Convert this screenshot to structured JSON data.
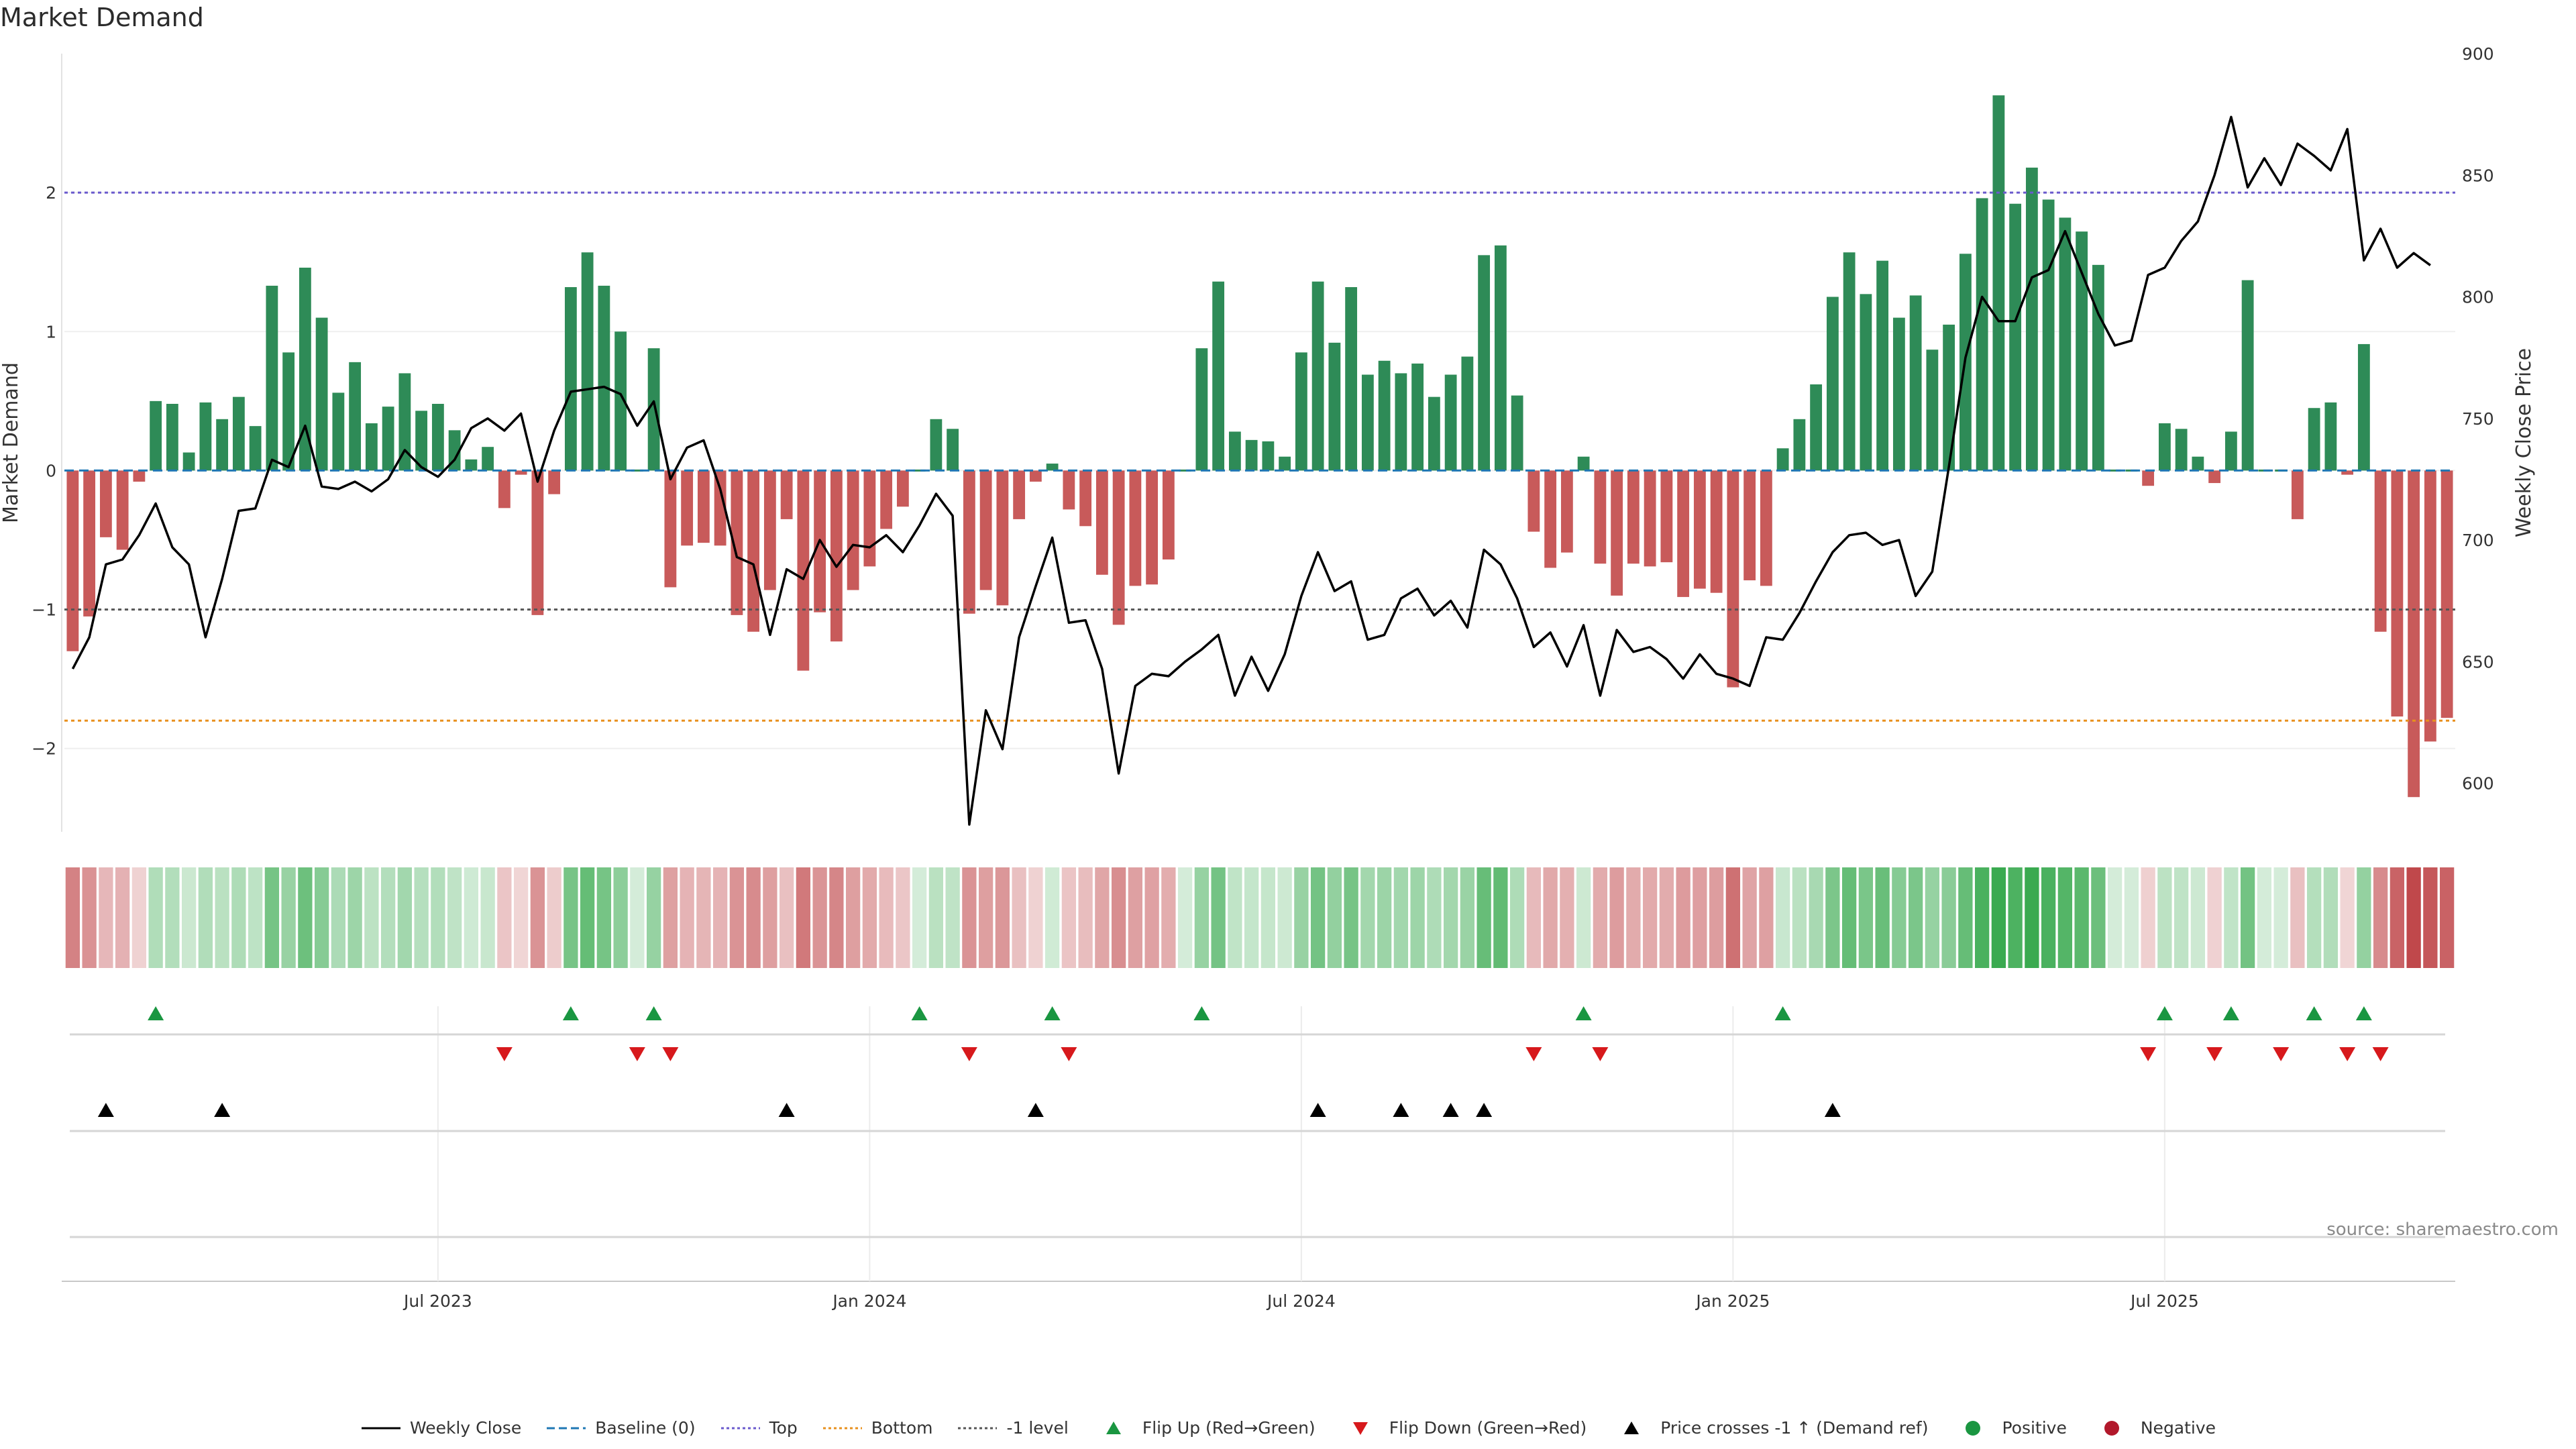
{
  "chart_data": {
    "type": "bar",
    "title": "Market Demand",
    "ylabel": "Market Demand",
    "y2label": "Weekly Close Price",
    "ylim": [
      -2.6,
      3.0
    ],
    "y2lim": [
      580,
      900
    ],
    "yticks": [
      -2,
      -1,
      0,
      1,
      2
    ],
    "yticklabels": [
      "−2",
      "−1",
      "0",
      "1",
      "2"
    ],
    "y2ticks": [
      600,
      650,
      700,
      750,
      800,
      850,
      900
    ],
    "y2ticklabels": [
      "600",
      "650",
      "700",
      "750",
      "800",
      "850",
      "900"
    ],
    "xticks": [
      22,
      48,
      74,
      100,
      126
    ],
    "xticklabels": [
      "Jul 2023",
      "Jan 2024",
      "Jul 2024",
      "Jan 2025",
      "Jul 2025"
    ],
    "reference_lines": [
      {
        "name": "Top",
        "value": 2.0,
        "color": "#6a5acd",
        "style": "dotted"
      },
      {
        "name": "-1 level",
        "value": -1.0,
        "color": "#555555",
        "style": "dotted"
      },
      {
        "name": "Bottom",
        "value": -1.8,
        "color": "#e8901e",
        "style": "dotted"
      },
      {
        "name": "Baseline (0)",
        "value": 0.0,
        "color": "#1f77b4",
        "style": "dashed"
      }
    ],
    "demand": [
      -1.3,
      -1.05,
      -0.48,
      -0.57,
      -0.08,
      0.5,
      0.48,
      0.13,
      0.49,
      0.37,
      0.53,
      0.32,
      1.33,
      0.85,
      1.46,
      1.1,
      0.56,
      0.78,
      0.34,
      0.46,
      0.7,
      0.43,
      0.48,
      0.29,
      0.08,
      0.17,
      -0.27,
      -0.03,
      -1.04,
      -0.17,
      1.32,
      1.57,
      1.33,
      1.0,
      0.0,
      0.88,
      -0.84,
      -0.54,
      -0.52,
      -0.54,
      -1.04,
      -1.16,
      -0.86,
      -0.35,
      -1.44,
      -1.02,
      -1.23,
      -0.86,
      -0.69,
      -0.42,
      -0.26,
      0.0,
      0.37,
      0.3,
      -1.03,
      -0.86,
      -0.97,
      -0.35,
      -0.08,
      0.05,
      -0.28,
      -0.4,
      -0.75,
      -1.11,
      -0.83,
      -0.82,
      -0.64,
      0.0,
      0.88,
      1.36,
      0.28,
      0.22,
      0.21,
      0.1,
      0.85,
      1.36,
      0.92,
      1.32,
      0.69,
      0.79,
      0.7,
      0.77,
      0.53,
      0.69,
      0.82,
      1.55,
      1.62,
      0.54,
      -0.44,
      -0.7,
      -0.59,
      0.1,
      -0.67,
      -0.9,
      -0.67,
      -0.69,
      -0.66,
      -0.91,
      -0.85,
      -0.88,
      -1.56,
      -0.79,
      -0.83,
      0.16,
      0.37,
      0.62,
      1.25,
      1.57,
      1.27,
      1.51,
      1.1,
      1.26,
      0.87,
      1.05,
      1.56,
      1.96,
      2.7,
      1.92,
      2.18,
      1.95,
      1.82,
      1.72,
      1.48,
      0.0,
      0.0,
      -0.11,
      0.34,
      0.3,
      0.1,
      -0.09,
      0.28,
      1.37,
      0.0,
      0.0,
      -0.35,
      0.45,
      0.49,
      -0.03,
      0.91,
      -1.16,
      -1.77,
      -2.35,
      -1.95,
      -1.78
    ],
    "weekly_close": [
      647,
      660,
      690,
      692,
      702,
      715,
      697,
      690,
      660,
      684,
      712,
      713,
      733,
      730,
      747,
      722,
      721,
      724,
      720,
      725,
      737,
      730,
      726,
      733,
      746,
      750,
      745,
      752,
      724,
      745,
      761,
      762,
      763,
      760,
      747,
      757,
      725,
      738,
      741,
      721,
      693,
      690,
      661,
      688,
      684,
      700,
      689,
      698,
      697,
      702,
      695,
      706,
      719,
      710,
      583,
      630,
      614,
      660,
      681,
      701,
      666,
      667,
      647,
      604,
      640,
      645,
      644,
      650,
      655,
      661,
      636,
      652,
      638,
      653,
      677,
      695,
      679,
      683,
      659,
      661,
      676,
      680,
      669,
      675,
      664,
      696,
      690,
      676,
      656,
      662,
      648,
      665,
      636,
      663,
      654,
      656,
      651,
      643,
      653,
      645,
      643,
      640,
      660,
      659,
      670,
      683,
      695,
      702,
      703,
      698,
      700,
      677,
      687,
      730,
      775,
      800,
      790,
      790,
      808,
      811,
      827,
      810,
      793,
      780,
      782,
      809,
      812,
      823,
      831,
      850,
      874,
      845,
      857,
      846,
      863,
      858,
      852,
      869,
      815,
      828,
      812,
      818,
      813
    ],
    "demand_band_colors": [
      {
        "category": "Positive",
        "color": "#2e8b57"
      },
      {
        "category": "Negative",
        "color": "#c85a5a"
      }
    ],
    "flip_up_indices": [
      5,
      30,
      35,
      51,
      59,
      68,
      91,
      103,
      126,
      130,
      135,
      138
    ],
    "flip_down_indices": [
      26,
      34,
      36,
      54,
      60,
      88,
      92,
      125,
      129,
      133,
      137,
      139
    ],
    "price_cross_indices": [
      2,
      9,
      43,
      58,
      75,
      80,
      83,
      85,
      106
    ]
  },
  "legend": [
    {
      "label": "Weekly Close",
      "kind": "line-solid",
      "color": "#000000"
    },
    {
      "label": "Baseline (0)",
      "kind": "line-dashed",
      "color": "#1f77b4"
    },
    {
      "label": "Top",
      "kind": "line-dotted",
      "color": "#6a5acd"
    },
    {
      "label": "Bottom",
      "kind": "line-dotted",
      "color": "#e8901e"
    },
    {
      "label": "-1 level",
      "kind": "line-dotted",
      "color": "#555555"
    },
    {
      "label": "Flip Up (Red→Green)",
      "kind": "triangle-up",
      "color": "#1a9641"
    },
    {
      "label": "Flip Down (Green→Red)",
      "kind": "triangle-down",
      "color": "#d7191c"
    },
    {
      "label": "Price crosses -1 ↑ (Demand ref)",
      "kind": "triangle-up",
      "color": "#000000"
    },
    {
      "label": "Positive",
      "kind": "dot",
      "color": "#1a9641"
    },
    {
      "label": "Negative",
      "kind": "dot",
      "color": "#b2182b"
    }
  ],
  "source": "source: sharemaestro.com"
}
